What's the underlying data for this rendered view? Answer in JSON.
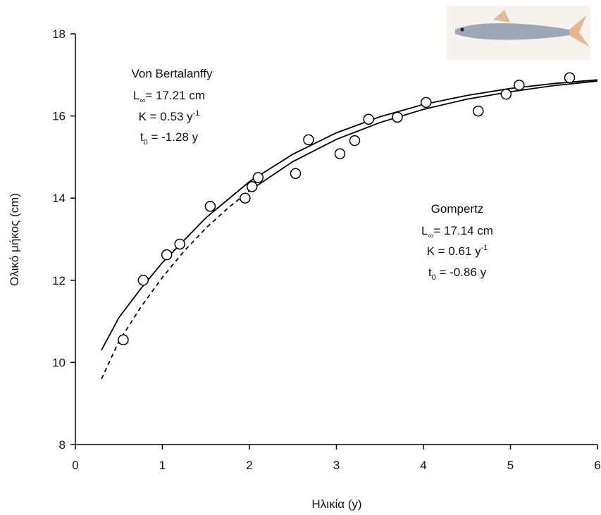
{
  "chart_data": {
    "type": "scatter",
    "x_label": "Ηλικία (y)",
    "y_label": "Ολικό μήκος (cm)",
    "xlim": [
      0,
      6
    ],
    "xticks": [
      0,
      1,
      2,
      3,
      4,
      5,
      6
    ],
    "ylim": [
      8,
      18
    ],
    "yticks": [
      8,
      10,
      12,
      14,
      16,
      18
    ],
    "grid": false,
    "series": [
      {
        "marker": "circle",
        "color": "#000000",
        "x": [
          0.55,
          0.78,
          1.05,
          1.2,
          1.55,
          1.95,
          2.03,
          2.1,
          2.53,
          2.68,
          3.04,
          3.21,
          3.37,
          3.7,
          4.03,
          4.63,
          4.95,
          5.1,
          5.68
        ],
        "values": [
          10.55,
          12.0,
          12.62,
          12.88,
          13.8,
          14.0,
          14.28,
          14.5,
          14.6,
          15.42,
          15.08,
          15.4,
          15.92,
          15.97,
          16.33,
          16.12,
          16.53,
          16.75,
          16.93
        ]
      },
      {
        "line_style": "solid",
        "color": "#000000",
        "x": [
          0.3,
          0.5,
          0.75,
          1,
          1.5,
          2,
          2.5,
          3,
          3.5,
          4,
          4.5,
          5,
          5.5,
          6
        ],
        "values": [
          10.3,
          11.09,
          11.79,
          12.43,
          13.52,
          14.4,
          15.07,
          15.59,
          15.98,
          16.28,
          16.5,
          16.67,
          16.79,
          16.88
        ]
      },
      {
        "line_style": "dashed",
        "color": "#000000",
        "x": [
          0.3,
          0.5,
          0.75,
          1,
          1.25,
          1.5,
          1.75,
          2
        ],
        "values": [
          9.6,
          10.51,
          11.34,
          12.07,
          12.71,
          13.27,
          13.75,
          14.18
        ]
      },
      {
        "line_style": "solid",
        "color": "#000000",
        "x": [
          2,
          2.5,
          3,
          3.5,
          4,
          4.5,
          5,
          5.5,
          6
        ],
        "values": [
          14.18,
          14.89,
          15.43,
          15.84,
          16.16,
          16.41,
          16.59,
          16.74,
          16.85
        ]
      }
    ],
    "annotations": [
      {
        "name": "Von Bertalanffy",
        "linf": [
          "L",
          "∞",
          "= 17.21 cm"
        ],
        "k": [
          "K = 0.53 y",
          "-1"
        ],
        "t0": [
          "t",
          "0",
          " = -1.28 y"
        ]
      },
      {
        "name": "Gompertz",
        "linf": [
          "L",
          "∞",
          "= 17.14 cm"
        ],
        "k": [
          "K = 0.61 y",
          "-1"
        ],
        "t0": [
          "t",
          "0",
          " = -0.86 y"
        ]
      }
    ]
  }
}
